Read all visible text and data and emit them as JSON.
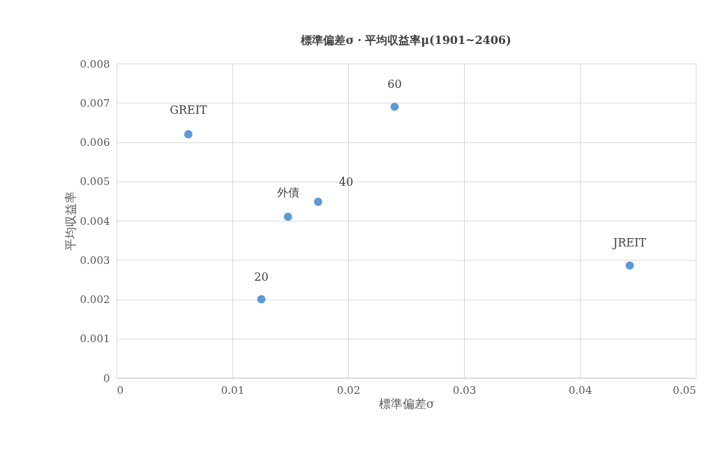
{
  "chart_data": {
    "type": "scatter",
    "title": "標準偏差σ・平均収益率μ(1901~2406)",
    "xlabel": "標準偏差σ",
    "ylabel": "平均収益率",
    "x": [
      0.0062,
      0.024,
      0.0174,
      0.0148,
      0.0125,
      0.0443
    ],
    "series": [
      {
        "color": "#5b9bd5",
        "values": [
          0.0062,
          0.0069,
          0.00448,
          0.0041,
          0.002,
          0.00286
        ]
      }
    ],
    "annotations": [
      {
        "text": "GREIT",
        "x": 0.0062,
        "y": 0.0062
      },
      {
        "text": "60",
        "x": 0.024,
        "y": 0.0069
      },
      {
        "text": "40",
        "x": 0.0174,
        "y": 0.00448
      },
      {
        "text": "外債",
        "x": 0.0148,
        "y": 0.0041
      },
      {
        "text": "20",
        "x": 0.0125,
        "y": 0.002
      },
      {
        "text": "JREIT",
        "x": 0.0443,
        "y": 0.00286
      }
    ],
    "xlim": [
      0,
      0.05
    ],
    "xticks": [
      0,
      0.01,
      0.02,
      0.03,
      0.04,
      0.05
    ],
    "ylim": [
      0,
      0.008
    ],
    "yticks": [
      0,
      0.001,
      0.002,
      0.003,
      0.004,
      0.005,
      0.006,
      0.007,
      0.008
    ],
    "grid": true,
    "marker": "circle"
  }
}
